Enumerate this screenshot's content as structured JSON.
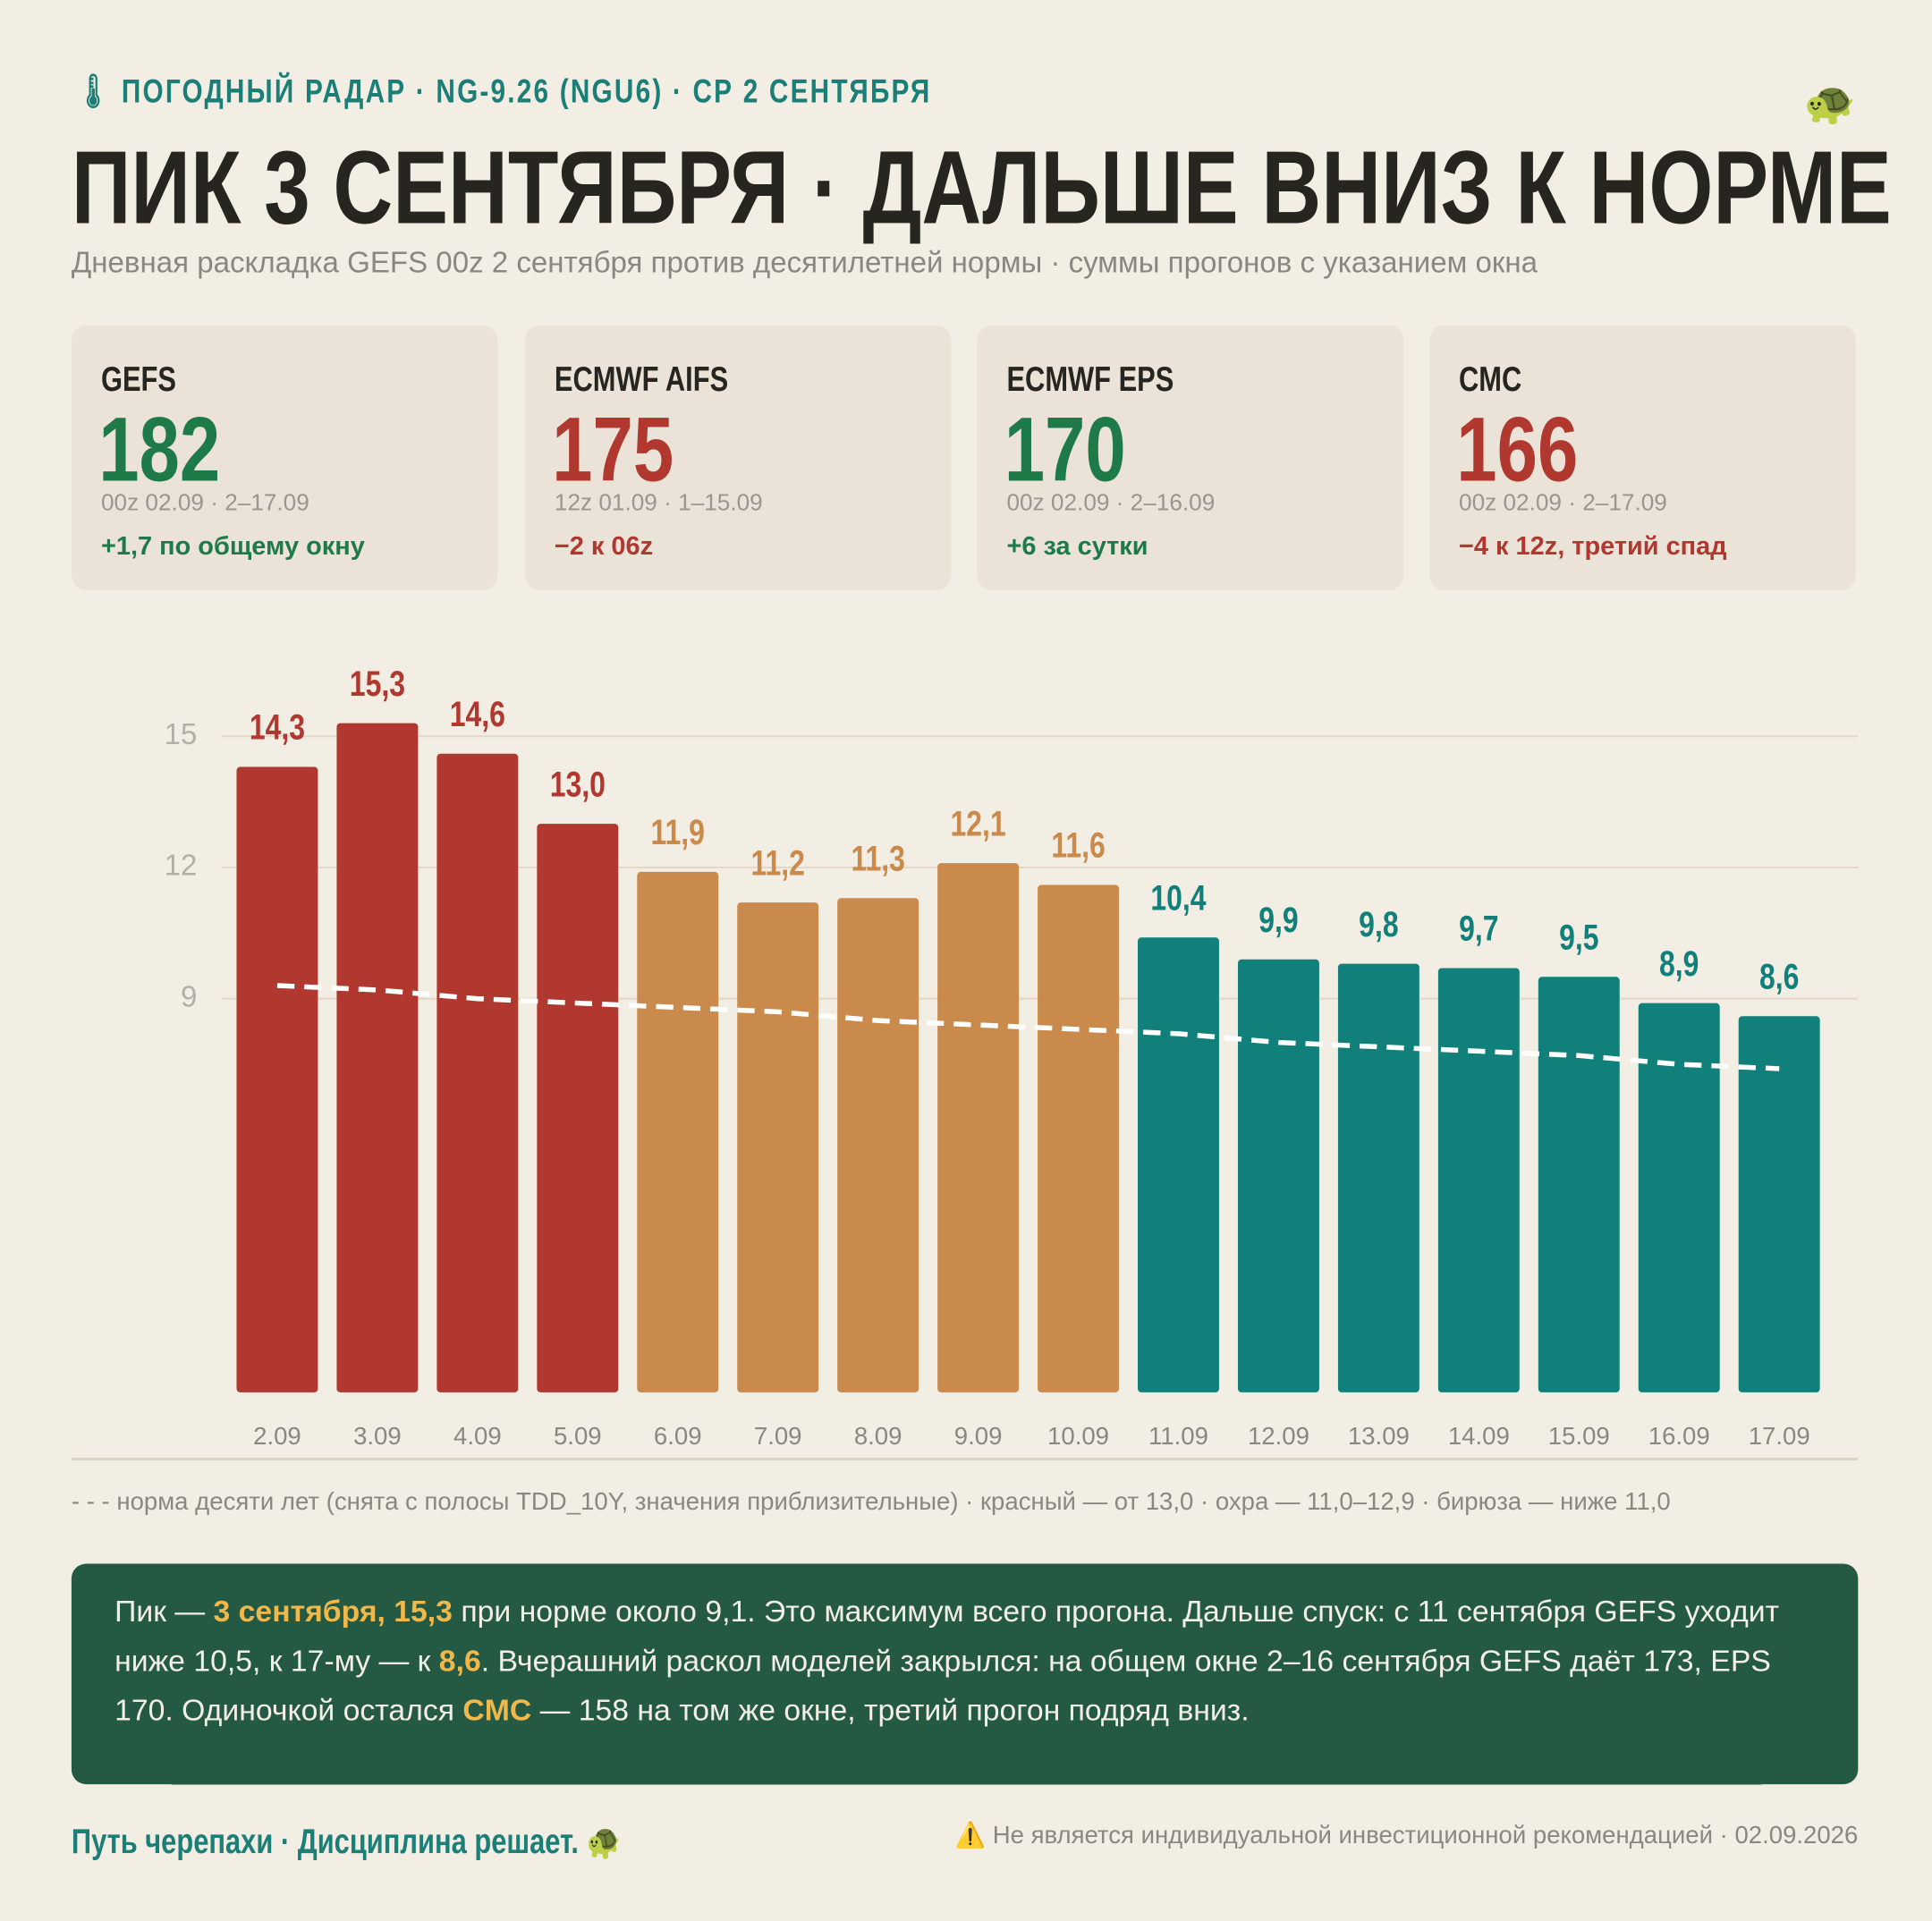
{
  "header": {
    "icon": "🌡",
    "kicker": "ПОГОДНЫЙ РАДАР · NG-9.26 (NGU6) · СР 2 СЕНТЯБРЯ",
    "title": "ПИК 3 СЕНТЯБРЯ · ДАЛЬШЕ ВНИЗ К НОРМЕ",
    "subtitle": "Дневная раскладка GEFS 00z 2 сентября против десятилетней нормы · суммы прогонов с указанием окна",
    "mascot": "🐢"
  },
  "cards": [
    {
      "name": "GEFS",
      "value": 182,
      "meta": "00z 02.09 · 2–17.09",
      "delta": "+1,7 по общему окну",
      "color": "#1f7a4a"
    },
    {
      "name": "ECMWF AIFS",
      "value": 175,
      "meta": "12z 01.09 · 1–15.09",
      "delta": "−2 к 06z",
      "color": "#b0382f"
    },
    {
      "name": "ECMWF EPS",
      "value": 170,
      "meta": "00z 02.09 · 2–16.09",
      "delta": "+6 за сутки",
      "color": "#1f7a4a"
    },
    {
      "name": "CMC",
      "value": 166,
      "meta": "00z 02.09 · 2–17.09",
      "delta": "−4 к 12z, третий спад",
      "color": "#b0382f"
    }
  ],
  "chart_data": {
    "type": "bar",
    "categories": [
      "2.09",
      "3.09",
      "4.09",
      "5.09",
      "6.09",
      "7.09",
      "8.09",
      "9.09",
      "10.09",
      "11.09",
      "12.09",
      "13.09",
      "14.09",
      "15.09",
      "16.09",
      "17.09"
    ],
    "values": [
      14.3,
      15.3,
      14.6,
      13.0,
      11.9,
      11.2,
      11.3,
      12.1,
      11.6,
      10.4,
      9.9,
      9.8,
      9.7,
      9.5,
      8.9,
      8.6
    ],
    "value_labels": [
      "14,3",
      "15,3",
      "14,6",
      "13,0",
      "11,9",
      "11,2",
      "11,3",
      "12,1",
      "11,6",
      "10,4",
      "9,9",
      "9,8",
      "9,7",
      "9,5",
      "8,9",
      "8,6"
    ],
    "colors": [
      "#b0382f",
      "#b0382f",
      "#b0382f",
      "#b0382f",
      "#c98a4b",
      "#c98a4b",
      "#c98a4b",
      "#c98a4b",
      "#c98a4b",
      "#12807a",
      "#12807a",
      "#12807a",
      "#12807a",
      "#12807a",
      "#12807a",
      "#12807a"
    ],
    "norm": {
      "values": [
        9.3,
        9.2,
        9.0,
        8.9,
        8.8,
        8.7,
        8.5,
        8.4,
        8.3,
        8.2,
        8.0,
        7.9,
        7.8,
        7.7,
        7.5,
        7.4
      ],
      "color": "#ffffff"
    },
    "ylim": [
      0,
      16.5
    ],
    "yticks": [
      9,
      12,
      15
    ],
    "grid": true,
    "note": "- - - норма десяти лет (снята с полосы TDD_10Y, значения приблизительные) · красный — от 13,0 · охра — 11,0–12,9 · бирюза — ниже 11,0"
  },
  "summary": [
    {
      "text": "Пик — ",
      "highlight": false
    },
    {
      "text": "3 сентября, 15,3",
      "highlight": true
    },
    {
      "text": " при норме около 9,1. Это максимум всего прогона. Дальше спуск: с 11 сентября GEFS уходит ниже 10,5, к 17-му — к ",
      "highlight": false
    },
    {
      "text": "8,6",
      "highlight": true
    },
    {
      "text": ". Вчерашний раскол моделей закрылся: на общем окне 2–16 сентября GEFS даёт 173, EPS 170. Одиночкой остался ",
      "highlight": false
    },
    {
      "text": "CMC",
      "highlight": true
    },
    {
      "text": " — 158 на том же окне, третий прогон подряд вниз.",
      "highlight": false
    }
  ],
  "footer": {
    "left": "Путь черепахи · Дисциплина решает. 🐢",
    "right": "⚠️ Не является индивидуальной инвестиционной рекомендацией · 02.09.2026"
  }
}
